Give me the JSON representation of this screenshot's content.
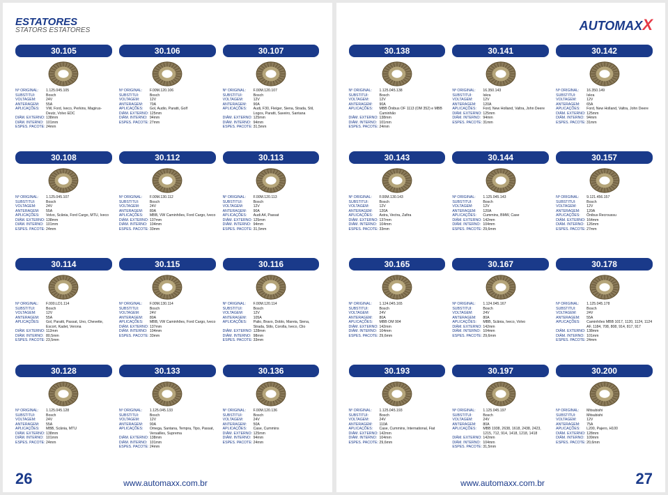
{
  "header": {
    "title_main": "ESTATORES",
    "title_sub": "STATORS ESTATORES",
    "logo_text": "AUTOMAX",
    "logo_x": "X"
  },
  "footer": {
    "page_left": "26",
    "page_right": "27",
    "url": "www.automaxx.com.br"
  },
  "labels": {
    "orig": "Nº ORIGINAL:",
    "sub": "SUBSTITUI:",
    "volt": "VOLTAGEM:",
    "amp": "ANTERAGEM:",
    "app": "APLICAÇÕES:",
    "dext": "DIÂM. EXTERNO:",
    "dint": "DIÂM. INTERNO:",
    "espe": "ESPES. PACOTE:"
  },
  "left": [
    {
      "num": "30.105",
      "orig": "1.125.045.105",
      "sub": "Bosch",
      "volt": "24V",
      "amp": "55A",
      "app": "VW, Ford, Iveco, Perkins, Magirus-Deutz, Volvo EDC",
      "dext": "138mm",
      "dint": "101mm",
      "espe": "24mm"
    },
    {
      "num": "30.106",
      "orig": "F.00M.120.106",
      "sub": "Bosch",
      "volt": "12V",
      "amp": "70A",
      "app": "Gol, Audio, Paratti, Golf",
      "dext": "125mm",
      "dint": "94mm",
      "espe": "27mm"
    },
    {
      "num": "30.107",
      "orig": "F.00M.120.107",
      "sub": "Bosch",
      "volt": "12V",
      "amp": "90A",
      "app": "Audi, F30, Fleíger, Siena, Strada, Stil, Logos, Paratti, Saveiro, Santana",
      "dext": "125mm",
      "dint": "94mm",
      "espe": "31,5mm"
    },
    {
      "num": "30.108",
      "orig": "1.125.045.107",
      "sub": "Bosch",
      "volt": "24V",
      "amp": "55A",
      "app": "Volvo, Scânia, Ford Cargo, MTU, Iveco",
      "dext": "138mm",
      "dint": "101mm",
      "espe": "24mm"
    },
    {
      "num": "30.112",
      "orig": "F.00M.130.112",
      "sub": "Bosch",
      "volt": "24V",
      "amp": "80A",
      "app": "MBB, VW Caminhões, Ford Cargo, Iveco",
      "dext": "137mm",
      "dint": "104mm",
      "espe": "33mm"
    },
    {
      "num": "30.113",
      "orig": "F.00M.120.113",
      "sub": "Bosch",
      "volt": "12V",
      "amp": "90A",
      "app": "Audi A4, Passat",
      "dext": "125mm",
      "dint": "94mm",
      "espe": "31,5mm"
    },
    {
      "num": "30.114",
      "orig": "F.000.LD1.114",
      "sub": "Bosch",
      "volt": "12V",
      "amp": "55A",
      "app": "Gol, Paratti, Passat, Uno, Chevette, Escort, Kadet, Verona",
      "dext": "112mm",
      "dint": "80,5mm",
      "espe": "23,5mm"
    },
    {
      "num": "30.115",
      "orig": "F.00M.130.114",
      "sub": "Bosch",
      "volt": "24V",
      "amp": "80A",
      "app": "MBB, VW Caminhões, Ford Cargo, Iveco",
      "dext": "137mm",
      "dint": "104mm",
      "espe": "33mm"
    },
    {
      "num": "30.116",
      "orig": "F.00M.120.114",
      "sub": "Bosch",
      "volt": "12V",
      "amp": "105A",
      "app": "Palio, Bravo, Doblo, Mareia, Siena, Strada, Stilo, Corolla, Iveco, Clio",
      "dext": "128mm",
      "dint": "98mm",
      "espe": "33mm"
    },
    {
      "num": "30.128",
      "orig": "1.125.045.128",
      "sub": "Bosch",
      "volt": "24V",
      "amp": "55A",
      "app": "MBB, Scânia, MTU",
      "dext": "138mm",
      "dint": "101mm",
      "espe": "24mm"
    },
    {
      "num": "30.133",
      "orig": "1.125.045.133",
      "sub": "Bosch",
      "volt": "12V",
      "amp": "90A",
      "app": "Omega, Santana, Tempra, Tipo, Passat, Versailles, Suprema",
      "dext": "138mm",
      "dint": "101mm",
      "espe": "24mm"
    },
    {
      "num": "30.136",
      "orig": "F.00M.120.136",
      "sub": "Bosch",
      "volt": "24V",
      "amp": "50A",
      "app": "Case, Cummins",
      "dext": "125mm",
      "dint": "94mm",
      "espe": "24mm"
    }
  ],
  "right": [
    {
      "num": "30.138",
      "orig": "1.125.045.138",
      "sub": "Bosch",
      "volt": "12V",
      "amp": "90A",
      "app": "MBB Ônibus OF 1113 (OM 352) e MBB Caminhão",
      "dext": "138mm",
      "dint": "101mm",
      "espe": "24mm"
    },
    {
      "num": "30.141",
      "orig": "16.350.143",
      "sub": "Iskra",
      "volt": "12V",
      "amp": "120A",
      "app": "Ford, New Holland, Valtra, John Deere",
      "dext": "125mm",
      "dint": "94mm",
      "espe": "31mm"
    },
    {
      "num": "30.142",
      "orig": "16.350.149",
      "sub": "Iskra",
      "volt": "12V",
      "amp": "65A",
      "app": "Ford, New Holland, Valtra, John Deere",
      "dext": "125mm",
      "dint": "94mm",
      "espe": "31mm"
    },
    {
      "num": "30.143",
      "orig": "F.00M.130.143",
      "sub": "Bosch",
      "volt": "12V",
      "amp": "120A",
      "app": "Astra, Vectra, Zafira",
      "dext": "137mm",
      "dint": "104mm",
      "espe": "33mm"
    },
    {
      "num": "30.144",
      "orig": "1.125.045.143",
      "sub": "Bosch",
      "volt": "12V",
      "amp": "120A",
      "app": "Cummins, BMW, Case",
      "dext": "142mm",
      "dint": "104mm",
      "espe": "29,6mm"
    },
    {
      "num": "30.157",
      "orig": "9.121.456.157",
      "sub": "Bosch",
      "volt": "12V",
      "amp": "120A",
      "app": "Ônibus Recroussu",
      "dext": "164mm",
      "dint": "126mm",
      "espe": "27mm"
    },
    {
      "num": "30.165",
      "orig": "1.124.045.165",
      "sub": "Bosch",
      "volt": "24V",
      "amp": "80A",
      "app": "MBB OM 904",
      "dext": "142mm",
      "dint": "104mm",
      "espe": "29,6mm"
    },
    {
      "num": "30.167",
      "orig": "1.124.045.167",
      "sub": "Bosch",
      "volt": "24V",
      "amp": "80A",
      "app": "MBB, Scânia, Iveco, Volvo",
      "dext": "142mm",
      "dint": "104mm",
      "espe": "29,6mm"
    },
    {
      "num": "30.178",
      "orig": "1.125.045.178",
      "sub": "Bosch",
      "volt": "24V",
      "amp": "55A",
      "app": "Caminhões MBB 1017, 1120, 1124, 1124 AF, 1184, 708, 808, 914, 817, 917",
      "dext": "138mm",
      "dint": "101mm",
      "espe": "24mm"
    },
    {
      "num": "30.193",
      "orig": "1.125.045.193",
      "sub": "Bosch",
      "volt": "24V",
      "amp": "110A",
      "app": "Case, Cummins, International, Fiat",
      "dext": "142mm",
      "dint": "104mm",
      "espe": "29,6mm"
    },
    {
      "num": "30.197",
      "orig": "1.125.045.197",
      "sub": "Bosch",
      "volt": "24V",
      "amp": "80A",
      "app": "MBB 1938, 2638, 1618, 2438, 2423, 1215, 712, 914, 1418, 1218, 1418",
      "dext": "142mm",
      "dint": "104mm",
      "espe": "31,5mm"
    },
    {
      "num": "30.200",
      "orig": "Mitsubishi",
      "sub": "Mitsubishi",
      "volt": "12V",
      "amp": "75A",
      "app": "L200, Pajero, H100",
      "dext": "128mm",
      "dint": "109mm",
      "espe": "20,6mm"
    }
  ]
}
